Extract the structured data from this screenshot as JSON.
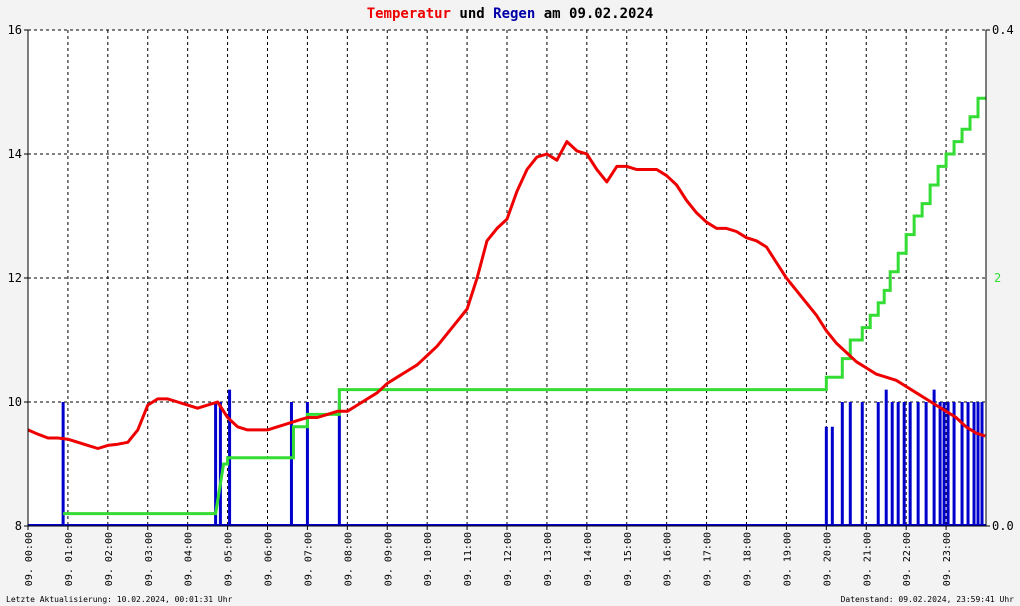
{
  "chart_data": {
    "type": "line",
    "title": {
      "part1": "Temperatur",
      "part2": " und ",
      "part3": "Regen",
      "part4": " am 09.02.2024"
    },
    "colors": {
      "temperature": "#ee0000",
      "rain_bars": "#0000cc",
      "rain_cumulative": "#33dd33",
      "grid": "#000000",
      "background": "#ffffff"
    },
    "left_axis": {
      "ylim": [
        8,
        16
      ],
      "ticks": [
        "8",
        "10",
        "12",
        "14",
        "16"
      ]
    },
    "right_axis": {
      "ylim": [
        0,
        0.4
      ],
      "ticks": [
        "0.0",
        "0.4"
      ],
      "green_label": "2"
    },
    "x_axis": {
      "xlim": [
        0,
        24
      ],
      "ticks": [
        "09. 00:00",
        "09. 01:00",
        "09. 02:00",
        "09. 03:00",
        "09. 04:00",
        "09. 05:00",
        "09. 06:00",
        "09. 07:00",
        "09. 08:00",
        "09. 09:00",
        "09. 10:00",
        "09. 11:00",
        "09. 12:00",
        "09. 13:00",
        "09. 14:00",
        "09. 15:00",
        "09. 16:00",
        "09. 17:00",
        "09. 18:00",
        "09. 19:00",
        "09. 20:00",
        "09. 21:00",
        "09. 22:00",
        "09. 23:00"
      ]
    },
    "temperature": {
      "x": [
        0,
        0.25,
        0.5,
        0.75,
        1.0,
        1.25,
        1.5,
        1.75,
        2.0,
        2.25,
        2.5,
        2.75,
        3.0,
        3.25,
        3.5,
        3.75,
        4.0,
        4.25,
        4.5,
        4.75,
        5.0,
        5.25,
        5.5,
        5.75,
        6.0,
        6.25,
        6.5,
        6.75,
        7.0,
        7.25,
        7.5,
        7.75,
        8.0,
        8.25,
        8.5,
        8.75,
        9.0,
        9.25,
        9.5,
        9.75,
        10.0,
        10.25,
        10.5,
        10.75,
        11.0,
        11.25,
        11.5,
        11.75,
        12.0,
        12.25,
        12.5,
        12.75,
        13.0,
        13.25,
        13.5,
        13.75,
        14.0,
        14.25,
        14.5,
        14.75,
        15.0,
        15.25,
        15.5,
        15.75,
        16.0,
        16.25,
        16.5,
        16.75,
        17.0,
        17.25,
        17.5,
        17.75,
        18.0,
        18.25,
        18.5,
        18.75,
        19.0,
        19.25,
        19.5,
        19.75,
        20.0,
        20.25,
        20.5,
        20.75,
        21.0,
        21.25,
        21.5,
        21.75,
        22.0,
        22.25,
        22.5,
        22.75,
        23.0,
        23.25,
        23.5,
        23.75,
        23.98
      ],
      "values": [
        9.55,
        9.48,
        9.42,
        9.42,
        9.4,
        9.35,
        9.3,
        9.25,
        9.3,
        9.32,
        9.35,
        9.55,
        9.95,
        10.05,
        10.05,
        10.0,
        9.95,
        9.9,
        9.95,
        10.0,
        9.75,
        9.6,
        9.55,
        9.55,
        9.55,
        9.6,
        9.65,
        9.7,
        9.75,
        9.75,
        9.8,
        9.85,
        9.85,
        9.95,
        10.05,
        10.15,
        10.3,
        10.4,
        10.5,
        10.6,
        10.75,
        10.9,
        11.1,
        11.3,
        11.5,
        12.0,
        12.6,
        12.8,
        12.95,
        13.4,
        13.75,
        13.95,
        14.0,
        13.9,
        14.2,
        14.05,
        14.0,
        13.75,
        13.55,
        13.8,
        13.8,
        13.75,
        13.75,
        13.75,
        13.65,
        13.5,
        13.25,
        13.05,
        12.9,
        12.8,
        12.8,
        12.75,
        12.65,
        12.6,
        12.5,
        12.25,
        12.0,
        11.8,
        11.6,
        11.4,
        11.15,
        10.95,
        10.8,
        10.65,
        10.55,
        10.45,
        10.4,
        10.35,
        10.25,
        10.15,
        10.05,
        9.95,
        9.85,
        9.75,
        9.6,
        9.5,
        9.45
      ]
    },
    "rain_cumulative": {
      "steps": [
        {
          "from": 0.88,
          "to": 4.7,
          "level": 0.1
        },
        {
          "from": 4.9,
          "to": 5.0,
          "level": 0.5
        },
        {
          "from": 5.0,
          "to": 6.65,
          "level": 0.55
        },
        {
          "from": 6.65,
          "to": 7.0,
          "level": 0.8
        },
        {
          "from": 7.0,
          "to": 7.8,
          "level": 0.9
        },
        {
          "from": 7.8,
          "to": 20.0,
          "level": 1.1
        },
        {
          "from": 20.0,
          "to": 20.4,
          "level": 1.2
        },
        {
          "from": 20.4,
          "to": 20.6,
          "level": 1.35
        },
        {
          "from": 20.6,
          "to": 20.9,
          "level": 1.5
        },
        {
          "from": 20.9,
          "to": 21.1,
          "level": 1.6
        },
        {
          "from": 21.1,
          "to": 21.3,
          "level": 1.7
        },
        {
          "from": 21.3,
          "to": 21.45,
          "level": 1.8
        },
        {
          "from": 21.45,
          "to": 21.6,
          "level": 1.9
        },
        {
          "from": 21.6,
          "to": 21.8,
          "level": 2.05
        },
        {
          "from": 21.8,
          "to": 22.0,
          "level": 2.2
        },
        {
          "from": 22.0,
          "to": 22.2,
          "level": 2.35
        },
        {
          "from": 22.2,
          "to": 22.4,
          "level": 2.5
        },
        {
          "from": 22.4,
          "to": 22.6,
          "level": 2.6
        },
        {
          "from": 22.6,
          "to": 22.8,
          "level": 2.75
        },
        {
          "from": 22.8,
          "to": 23.0,
          "level": 2.9
        },
        {
          "from": 23.0,
          "to": 23.2,
          "level": 3.0
        },
        {
          "from": 23.2,
          "to": 23.4,
          "level": 3.1
        },
        {
          "from": 23.4,
          "to": 23.6,
          "level": 3.2
        },
        {
          "from": 23.6,
          "to": 23.8,
          "level": 3.3
        },
        {
          "from": 23.8,
          "to": 24.0,
          "level": 3.45
        }
      ]
    },
    "rain_bars": {
      "x": [
        0.88,
        4.7,
        4.82,
        5.05,
        6.6,
        7.0,
        7.8,
        20.0,
        20.15,
        20.4,
        20.6,
        20.9,
        21.3,
        21.5,
        21.65,
        21.8,
        21.95,
        22.1,
        22.3,
        22.5,
        22.7,
        22.85,
        22.95,
        23.05,
        23.2,
        23.4,
        23.55,
        23.7,
        23.8,
        23.9
      ],
      "values": [
        0.1,
        0.1,
        0.1,
        0.11,
        0.1,
        0.1,
        0.1,
        0.08,
        0.08,
        0.1,
        0.1,
        0.1,
        0.1,
        0.11,
        0.1,
        0.1,
        0.1,
        0.1,
        0.1,
        0.1,
        0.11,
        0.1,
        0.1,
        0.1,
        0.1,
        0.1,
        0.1,
        0.1,
        0.1,
        0.1
      ]
    },
    "footer": {
      "left": "Letzte Aktualisierung: 10.02.2024, 00:01:31 Uhr",
      "right": "Datenstand: 09.02.2024, 23:59:41 Uhr"
    },
    "grid": true
  }
}
